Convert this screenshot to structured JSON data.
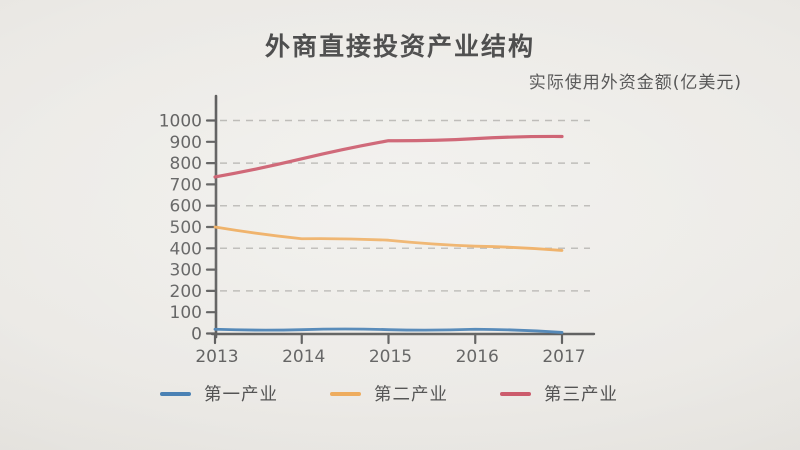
{
  "title": "外商直接投资产业结构",
  "subtitle": "实际使用外资金额(亿美元)",
  "chart_data": {
    "type": "line",
    "title": "外商直接投资产业结构",
    "unit_label": "实际使用外资金额(亿美元)",
    "x": [
      "2013",
      "2014",
      "2015",
      "2016",
      "2017"
    ],
    "series": [
      {
        "name": "第一产业",
        "color": "#3a76ad",
        "values": [
          20,
          18,
          18,
          20,
          5
        ]
      },
      {
        "name": "第二产业",
        "color": "#eca24b",
        "values": [
          500,
          445,
          438,
          410,
          390
        ]
      },
      {
        "name": "第三产业",
        "color": "#c6495c",
        "values": [
          735,
          820,
          905,
          915,
          925
        ]
      }
    ],
    "ylim": [
      0,
      1000
    ],
    "ytick_step": 100,
    "y_tick_labels": [
      "0",
      "100",
      "200",
      "300",
      "400",
      "500",
      "600",
      "700",
      "800",
      "900",
      "1000"
    ],
    "x_tick_labels": [
      "2013",
      "2014",
      "2015",
      "2016",
      "2017"
    ],
    "grid": {
      "horizontal": true,
      "style": "dashed",
      "step": 200
    },
    "legend_position": "bottom",
    "legend": [
      "第一产业",
      "第二产业",
      "第三产业"
    ]
  },
  "colors": {
    "background": "#eae8e4",
    "axis": "#4a4a4a",
    "grid": "#b3b1ad",
    "title_text": "#3d3d3d",
    "tick_text": "#4f4f4f"
  }
}
